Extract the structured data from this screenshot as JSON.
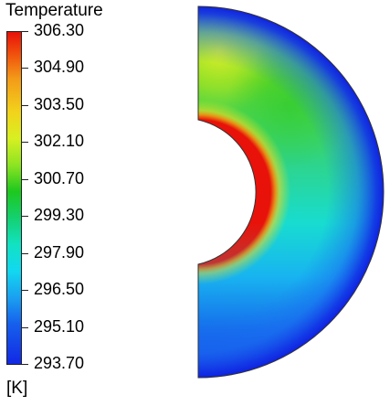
{
  "legend": {
    "title": "Temperature",
    "units": "[K]",
    "tick_labels": [
      "306.30",
      "304.90",
      "303.50",
      "302.10",
      "300.70",
      "299.30",
      "297.90",
      "296.50",
      "295.10",
      "293.70"
    ],
    "max_color": "#e8120a",
    "min_color": "#1228e4"
  },
  "contour_plot": {
    "field": "Temperature",
    "shape": "half-annulus",
    "hot_color": "#e8120a",
    "mid_color": "#1ec81e",
    "cold_color": "#1228e4"
  }
}
